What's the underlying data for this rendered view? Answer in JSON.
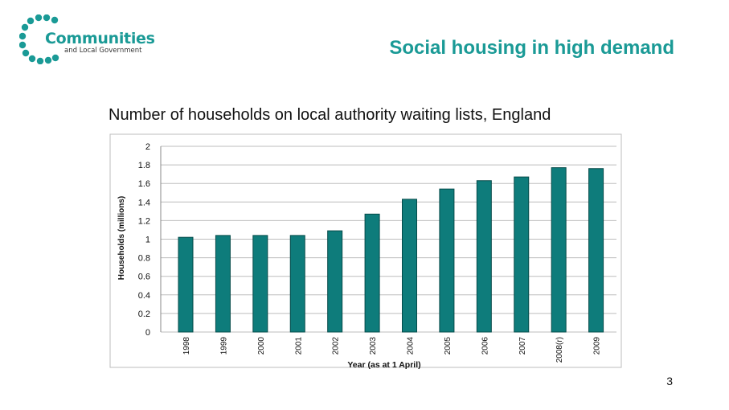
{
  "header": {
    "logo_word": "Communities",
    "logo_sub": "and Local Government",
    "slide_title": "Social housing in high demand"
  },
  "colors": {
    "brand": "#1a9a96",
    "bar": "#0e7c7b",
    "bar_stroke": "#064b4a",
    "grid": "#bdbdbd"
  },
  "chart_caption": "Number of households on local authority waiting lists, England",
  "page_number": "3",
  "chart_data": {
    "type": "bar",
    "categories": [
      "1998",
      "1999",
      "2000",
      "2001",
      "2002",
      "2003",
      "2004",
      "2005",
      "2006",
      "2007",
      "2008(r)",
      "2009"
    ],
    "values": [
      1.02,
      1.04,
      1.04,
      1.04,
      1.09,
      1.27,
      1.43,
      1.54,
      1.63,
      1.67,
      1.77,
      1.76
    ],
    "title": "Number of households on local authority waiting lists, England",
    "xlabel": "Year (as at 1 April)",
    "ylabel": "Households (millions)",
    "ylim": [
      0,
      2
    ],
    "yticks": [
      "0",
      "0.2",
      "0.4",
      "0.6",
      "0.8",
      "1",
      "1.2",
      "1.4",
      "1.6",
      "1.8",
      "2"
    ],
    "grid": true,
    "legend": "none"
  }
}
